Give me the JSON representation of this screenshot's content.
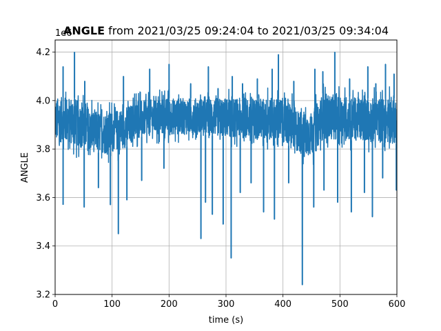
{
  "chart_data": {
    "type": "line",
    "title": {
      "bold_part": "ANGLE",
      "rest": " from 2021/03/25 09:24:04 to 2021/03/25 09:34:04"
    },
    "xlabel": "time (s)",
    "ylabel": "ANGLE",
    "y_offset_text": "1e6",
    "xlim": [
      0,
      600
    ],
    "ylim": [
      3.2,
      4.25
    ],
    "x_ticks": [
      0,
      100,
      200,
      300,
      400,
      500,
      600
    ],
    "y_ticks": [
      3.2,
      3.4,
      3.6,
      3.8,
      4.0,
      4.2
    ],
    "y_tick_labels": [
      "3.2",
      "3.4",
      "3.6",
      "3.8",
      "4.0",
      "4.2"
    ],
    "grid": true,
    "line_color": "#1f77b4",
    "series": [
      {
        "band": [
          {
            "x": 0,
            "low": 3.83,
            "high": 4.01
          },
          {
            "x": 30,
            "low": 3.82,
            "high": 4.02
          },
          {
            "x": 60,
            "low": 3.79,
            "high": 3.96
          },
          {
            "x": 90,
            "low": 3.78,
            "high": 3.95
          },
          {
            "x": 120,
            "low": 3.8,
            "high": 3.97
          },
          {
            "x": 150,
            "low": 3.85,
            "high": 4.0
          },
          {
            "x": 200,
            "low": 3.86,
            "high": 4.01
          },
          {
            "x": 250,
            "low": 3.86,
            "high": 4.01
          },
          {
            "x": 300,
            "low": 3.85,
            "high": 4.01
          },
          {
            "x": 350,
            "low": 3.84,
            "high": 4.01
          },
          {
            "x": 400,
            "low": 3.83,
            "high": 4.01
          },
          {
            "x": 430,
            "low": 3.78,
            "high": 3.96
          },
          {
            "x": 450,
            "low": 3.77,
            "high": 3.95
          },
          {
            "x": 470,
            "low": 3.84,
            "high": 4.03
          },
          {
            "x": 500,
            "low": 3.84,
            "high": 4.02
          },
          {
            "x": 550,
            "low": 3.83,
            "high": 4.01
          },
          {
            "x": 600,
            "low": 3.82,
            "high": 4.01
          }
        ],
        "spikes": [
          {
            "x": 14,
            "y": 4.14
          },
          {
            "x": 34,
            "y": 4.2
          },
          {
            "x": 52,
            "y": 4.08
          },
          {
            "x": 120,
            "y": 4.1
          },
          {
            "x": 166,
            "y": 4.13
          },
          {
            "x": 200,
            "y": 4.15
          },
          {
            "x": 238,
            "y": 4.07
          },
          {
            "x": 269,
            "y": 4.14
          },
          {
            "x": 286,
            "y": 4.05
          },
          {
            "x": 311,
            "y": 4.1
          },
          {
            "x": 329,
            "y": 4.07
          },
          {
            "x": 355,
            "y": 4.09
          },
          {
            "x": 381,
            "y": 4.13
          },
          {
            "x": 392,
            "y": 4.19
          },
          {
            "x": 419,
            "y": 4.08
          },
          {
            "x": 456,
            "y": 4.13
          },
          {
            "x": 470,
            "y": 4.12
          },
          {
            "x": 491,
            "y": 4.2
          },
          {
            "x": 517,
            "y": 4.09
          },
          {
            "x": 549,
            "y": 4.14
          },
          {
            "x": 563,
            "y": 4.07
          },
          {
            "x": 580,
            "y": 4.15
          },
          {
            "x": 595,
            "y": 4.11
          },
          {
            "x": 14,
            "y": 3.57
          },
          {
            "x": 51,
            "y": 3.56
          },
          {
            "x": 76,
            "y": 3.64
          },
          {
            "x": 97,
            "y": 3.57
          },
          {
            "x": 111,
            "y": 3.45
          },
          {
            "x": 126,
            "y": 3.59
          },
          {
            "x": 152,
            "y": 3.67
          },
          {
            "x": 191,
            "y": 3.72
          },
          {
            "x": 256,
            "y": 3.43
          },
          {
            "x": 264,
            "y": 3.58
          },
          {
            "x": 276,
            "y": 3.53
          },
          {
            "x": 295,
            "y": 3.49
          },
          {
            "x": 309,
            "y": 3.35
          },
          {
            "x": 325,
            "y": 3.62
          },
          {
            "x": 344,
            "y": 3.66
          },
          {
            "x": 366,
            "y": 3.54
          },
          {
            "x": 385,
            "y": 3.51
          },
          {
            "x": 410,
            "y": 3.66
          },
          {
            "x": 434,
            "y": 3.24
          },
          {
            "x": 454,
            "y": 3.56
          },
          {
            "x": 472,
            "y": 3.63
          },
          {
            "x": 496,
            "y": 3.58
          },
          {
            "x": 520,
            "y": 3.54
          },
          {
            "x": 543,
            "y": 3.62
          },
          {
            "x": 557,
            "y": 3.52
          },
          {
            "x": 575,
            "y": 3.68
          },
          {
            "x": 599,
            "y": 3.63
          }
        ]
      }
    ]
  }
}
